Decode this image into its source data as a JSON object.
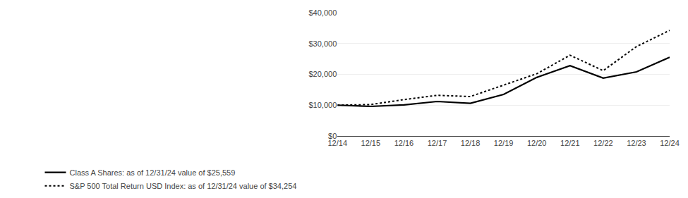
{
  "chart_data": {
    "type": "line",
    "categories": [
      "12/14",
      "12/15",
      "12/16",
      "12/17",
      "12/18",
      "12/19",
      "12/20",
      "12/21",
      "12/22",
      "12/23",
      "12/24"
    ],
    "series": [
      {
        "name": "Class A Shares: as of 12/31/24 value of $25,559",
        "color": "#000000",
        "line_style": "solid",
        "values": [
          10000,
          9600,
          10100,
          11200,
          10600,
          13500,
          19000,
          22800,
          18800,
          20800,
          25559
        ]
      },
      {
        "name": "S&P 500 Total Return USD Index: as of 12/31/24 value of $34,254",
        "color": "#000000",
        "line_style": "dotted",
        "values": [
          10000,
          10200,
          11800,
          13200,
          12800,
          16500,
          20200,
          26200,
          21200,
          29000,
          34254
        ]
      }
    ],
    "ylim": [
      0,
      40000
    ],
    "yticks": [
      {
        "value": 0,
        "label": "$0"
      },
      {
        "value": 10000,
        "label": "$10,000"
      },
      {
        "value": 20000,
        "label": "$20,000"
      },
      {
        "value": 30000,
        "label": "$30,000"
      },
      {
        "value": 40000,
        "label": "$40,000"
      }
    ],
    "grid": true,
    "legend": "lower left"
  }
}
